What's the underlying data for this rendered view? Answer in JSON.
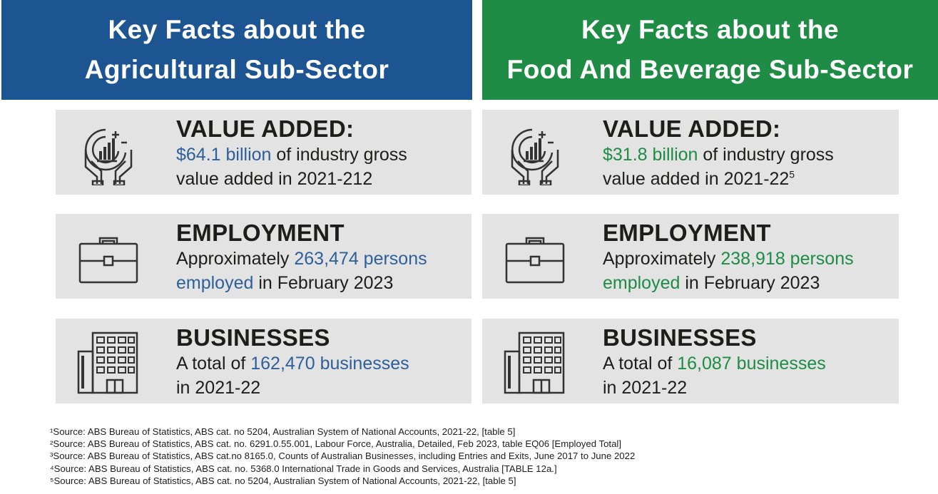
{
  "left": {
    "title_line1": "Key Facts about the",
    "title_line2": "Agricultural Sub-Sector",
    "value_added": {
      "heading": "VALUE ADDED:",
      "highlight": "$64.1 billion",
      "rest1": " of industry gross",
      "line2": "value added in 2021-212",
      "sup": ""
    },
    "employment": {
      "heading": "EMPLOYMENT",
      "prefix": "Approximately ",
      "highlight1": "263,474 persons",
      "highlight2": "employed",
      "rest": " in February 2023"
    },
    "businesses": {
      "heading": "BUSINESSES",
      "prefix": "A total of ",
      "highlight": "162,470 businesses",
      "line2": "in 2021-22"
    }
  },
  "right": {
    "title_line1": "Key Facts about the",
    "title_line2": "Food And Beverage Sub-Sector",
    "value_added": {
      "heading": "VALUE ADDED:",
      "highlight": "$31.8 billion",
      "rest1": " of industry gross",
      "line2": "value added in 2021-22",
      "sup": "5"
    },
    "employment": {
      "heading": "EMPLOYMENT",
      "prefix": "Approximately ",
      "highlight1": "238,918 persons",
      "highlight2": "employed",
      "rest": " in February 2023"
    },
    "businesses": {
      "heading": "BUSINESSES",
      "prefix": "A total of ",
      "highlight": "16,087 businesses",
      "line2": "in 2021-22"
    }
  },
  "footnotes": [
    "¹Source: ABS Bureau of Statistics, ABS cat. no 5204, Australian System of National Accounts, 2021-22, [table 5]",
    "²Source: ABS Bureau of Statistics, ABS cat. no. 6291.0.55.001, Labour Force, Australia, Detailed, Feb 2023, table EQ06 [Employed Total]",
    "³Source: ABS Bureau of Statistics, ABS cat.no 8165.0, Counts of Australian Businesses, including Entries and Exits, June 2017 to June 2022",
    "⁴Source: ABS Bureau of Statistics, ABS cat. no. 5368.0 International Trade in Goods and Services, Australia [TABLE 12a.]",
    "⁵Source: ABS Bureau of Statistics, ABS cat. no 5204, Australian System of National Accounts, 2021-22, [table 5]"
  ],
  "colors": {
    "blue": "#1c5592",
    "green": "#1e8c45",
    "card": "#e3e3e4"
  },
  "icons": [
    "hands-chart-icon",
    "briefcase-icon",
    "building-icon"
  ]
}
